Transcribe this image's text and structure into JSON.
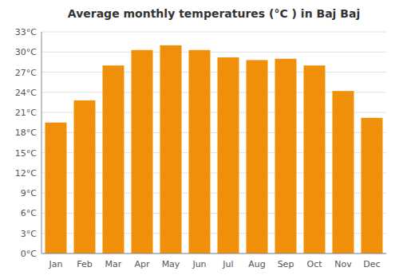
{
  "chart_data": {
    "type": "bar",
    "title": "Average monthly temperatures (°C ) in Baj Baj",
    "categories": [
      "Jan",
      "Feb",
      "Mar",
      "Apr",
      "May",
      "Jun",
      "Jul",
      "Aug",
      "Sep",
      "Oct",
      "Nov",
      "Dec"
    ],
    "values": [
      19.5,
      22.8,
      28.0,
      30.3,
      31.0,
      30.3,
      29.2,
      28.8,
      29.0,
      28.0,
      24.2,
      20.2
    ],
    "color": "#F0900A",
    "ylim": [
      0,
      33
    ],
    "yticks": [
      {
        "value": 0,
        "label": "0°C"
      },
      {
        "value": 3,
        "label": "3°C"
      },
      {
        "value": 6,
        "label": "6°C"
      },
      {
        "value": 9,
        "label": "9°C"
      },
      {
        "value": 12,
        "label": "12°C"
      },
      {
        "value": 15,
        "label": "15°C"
      },
      {
        "value": 18,
        "label": "18°C"
      },
      {
        "value": 21,
        "label": "21°C"
      },
      {
        "value": 24,
        "label": "24°C"
      },
      {
        "value": 27,
        "label": "27°C"
      },
      {
        "value": 30,
        "label": "30°C"
      },
      {
        "value": 33,
        "label": "33°C"
      }
    ],
    "grid": true
  }
}
